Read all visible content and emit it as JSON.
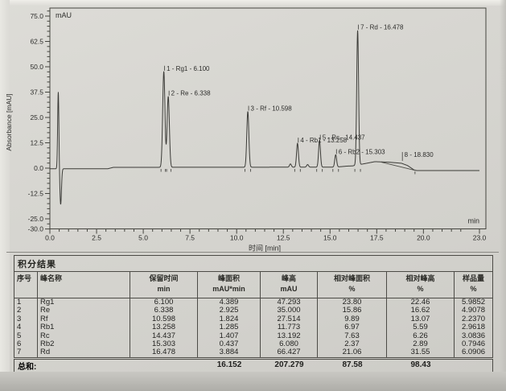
{
  "chart": {
    "y_unit_label": "mAU",
    "x_unit_label": "min",
    "y_axis_title": "Absorbance [mAU]",
    "x_axis_title": "时间 [min]",
    "chart_data": {
      "type": "line",
      "title": "",
      "xlabel": "时间 [min]",
      "ylabel": "Absorbance [mAU]",
      "xlim": [
        0,
        23
      ],
      "ylim": [
        -30,
        79
      ],
      "grid": false,
      "x_ticks": [
        {
          "v": 0.0,
          "label": "0.0"
        },
        {
          "v": 2.5,
          "label": "2.5"
        },
        {
          "v": 5.0,
          "label": "5.0"
        },
        {
          "v": 7.5,
          "label": "7.5"
        },
        {
          "v": 10.0,
          "label": "10.0"
        },
        {
          "v": 12.5,
          "label": "12.5"
        },
        {
          "v": 15.0,
          "label": "15.0"
        },
        {
          "v": 17.5,
          "label": "17.5"
        },
        {
          "v": 20.0,
          "label": "20.0"
        },
        {
          "v": 23.0,
          "label": "23.0"
        }
      ],
      "y_ticks": [
        {
          "v": 75.0,
          "label": "75.0"
        },
        {
          "v": 62.5,
          "label": "62.5"
        },
        {
          "v": 50.0,
          "label": "50.0"
        },
        {
          "v": 37.5,
          "label": "37.5"
        },
        {
          "v": 25.0,
          "label": "25.0"
        },
        {
          "v": 12.5,
          "label": "12.5"
        },
        {
          "v": 0.0,
          "label": "0.0"
        },
        {
          "v": -12.5,
          "label": "-12.5"
        },
        {
          "v": -25.0,
          "label": "-25.0"
        },
        {
          "v": -30.0,
          "label": "-30.0"
        }
      ],
      "x_minor_step": 0.5,
      "y_minor_step": 2.5,
      "peaks": [
        {
          "num": 1,
          "name": "Rg1",
          "rt": 6.1,
          "height": 47.293,
          "area": 4.389,
          "w": 0.06,
          "label": "1 - Rg1 - 6.100"
        },
        {
          "num": 2,
          "name": "Re",
          "rt": 6.338,
          "height": 35.0,
          "area": 2.925,
          "w": 0.06,
          "label": "2 - Re - 6.338"
        },
        {
          "num": 3,
          "name": "Rf",
          "rt": 10.598,
          "height": 27.514,
          "area": 1.824,
          "w": 0.055,
          "label": "3 - Rf - 10.598"
        },
        {
          "num": 4,
          "name": "Rb1",
          "rt": 13.258,
          "height": 11.773,
          "area": 1.285,
          "w": 0.05,
          "label": "4 - Rb1 - 13.258"
        },
        {
          "num": 5,
          "name": "Rc",
          "rt": 14.437,
          "height": 13.192,
          "area": 1.407,
          "w": 0.05,
          "label": "5 - Rc - 14.437"
        },
        {
          "num": 6,
          "name": "Rb2",
          "rt": 15.303,
          "height": 6.08,
          "area": 0.437,
          "w": 0.05,
          "label": "6 - Rb2 - 15.303"
        },
        {
          "num": 7,
          "name": "Rd",
          "rt": 16.478,
          "height": 66.427,
          "area": 3.884,
          "w": 0.05,
          "label": "7 - Rd - 16.478"
        },
        {
          "num": 8,
          "name": "",
          "rt": 18.83,
          "height": 0,
          "area": null,
          "w": 0,
          "label": "8 - 18.830",
          "broad": true
        }
      ],
      "injection_spikes": [
        {
          "rt": 0.45,
          "h": 38.0,
          "w": 0.033
        },
        {
          "rt": 0.578,
          "h": -17.6,
          "w": 0.042
        }
      ],
      "minor_peaks": [
        {
          "rt": 12.88,
          "h": 1.6,
          "w": 0.05
        },
        {
          "rt": 13.8,
          "h": 1.3,
          "w": 0.05
        }
      ],
      "baseline_points": [
        [
          0,
          -0.3
        ],
        [
          3.1,
          -0.3
        ],
        [
          3.4,
          0.4
        ],
        [
          15.3,
          0.5
        ],
        [
          15.9,
          1.0
        ],
        [
          16.2,
          1.1
        ],
        [
          16.9,
          2.3
        ],
        [
          17.4,
          3.2
        ],
        [
          18.2,
          2.9
        ],
        [
          18.83,
          2.4
        ],
        [
          19.15,
          1.3
        ],
        [
          19.5,
          -0.9
        ],
        [
          19.65,
          -1.2
        ],
        [
          23,
          -1.2
        ]
      ],
      "integration_line": [
        [
          17.75,
          2.95
        ],
        [
          19.55,
          -1.1
        ]
      ],
      "peak_end_tick": 19.55
    }
  },
  "table": {
    "title": "积分结果",
    "columns": [
      {
        "label": "序号",
        "unit": ""
      },
      {
        "label": "峰名称",
        "unit": ""
      },
      {
        "label": "保留时间",
        "unit": "min"
      },
      {
        "label": "峰面积",
        "unit": "mAU*min"
      },
      {
        "label": "峰高",
        "unit": "mAU"
      },
      {
        "label": "相对峰面积",
        "unit": "%"
      },
      {
        "label": "相对峰高",
        "unit": "%"
      },
      {
        "label": "样品量",
        "unit": "%"
      }
    ],
    "rows": [
      [
        "1",
        "Rg1",
        "6.100",
        "4.389",
        "47.293",
        "23.80",
        "22.46",
        "5.9852"
      ],
      [
        "2",
        "Re",
        "6.338",
        "2.925",
        "35.000",
        "15.86",
        "16.62",
        "4.9078"
      ],
      [
        "3",
        "Rf",
        "10.598",
        "1.824",
        "27.514",
        "9.89",
        "13.07",
        "2.2370"
      ],
      [
        "4",
        "Rb1",
        "13.258",
        "1.285",
        "11.773",
        "6.97",
        "5.59",
        "2.9618"
      ],
      [
        "5",
        "Rc",
        "14.437",
        "1.407",
        "13.192",
        "7.63",
        "6.26",
        "3.0836"
      ],
      [
        "6",
        "Rb2",
        "15.303",
        "0.437",
        "6.080",
        "2.37",
        "2.89",
        "0.7946"
      ],
      [
        "7",
        "Rd",
        "16.478",
        "3.884",
        "66.427",
        "21.06",
        "31.55",
        "6.0906"
      ]
    ],
    "total_label": "总和:",
    "totals": [
      "",
      "",
      "",
      "16.152",
      "207.279",
      "87.58",
      "98.43",
      ""
    ]
  }
}
